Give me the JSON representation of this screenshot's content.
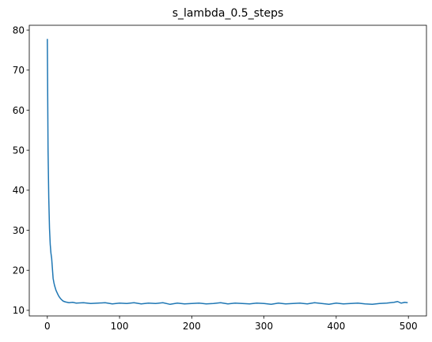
{
  "chart_data": {
    "type": "line",
    "title": "s_lambda_0.5_steps",
    "xlabel": "",
    "ylabel": "",
    "xlim": [
      -25,
      525
    ],
    "ylim": [
      8.6,
      81.2
    ],
    "xticks": [
      0,
      100,
      200,
      300,
      400,
      500
    ],
    "yticks": [
      10,
      20,
      30,
      40,
      50,
      60,
      70,
      80
    ],
    "grid": false,
    "legend": "none",
    "series": [
      {
        "color": "#1f77b4",
        "x": [
          0,
          1,
          2,
          3,
          4,
          5,
          6,
          7,
          8,
          9,
          10,
          12,
          14,
          16,
          18,
          20,
          22,
          25,
          30,
          35,
          40,
          50,
          60,
          70,
          80,
          90,
          100,
          110,
          120,
          130,
          140,
          150,
          160,
          170,
          180,
          190,
          200,
          210,
          220,
          230,
          240,
          250,
          260,
          270,
          280,
          290,
          300,
          310,
          320,
          330,
          340,
          350,
          360,
          370,
          380,
          390,
          400,
          410,
          420,
          430,
          440,
          450,
          460,
          470,
          480,
          485,
          490,
          495,
          499
        ],
        "y": [
          77.8,
          50.0,
          38.0,
          30.5,
          26.5,
          24.3,
          23.0,
          20.5,
          18.0,
          17.0,
          16.2,
          15.0,
          14.2,
          13.5,
          13.0,
          12.6,
          12.3,
          12.1,
          11.9,
          12.0,
          11.8,
          11.9,
          11.7,
          11.8,
          11.9,
          11.6,
          11.8,
          11.7,
          11.9,
          11.6,
          11.8,
          11.7,
          11.9,
          11.5,
          11.8,
          11.6,
          11.7,
          11.8,
          11.6,
          11.7,
          11.9,
          11.6,
          11.8,
          11.7,
          11.6,
          11.8,
          11.7,
          11.5,
          11.8,
          11.6,
          11.7,
          11.8,
          11.6,
          11.9,
          11.7,
          11.5,
          11.8,
          11.6,
          11.7,
          11.8,
          11.6,
          11.5,
          11.7,
          11.8,
          12.0,
          12.2,
          11.8,
          12.0,
          11.9
        ]
      }
    ]
  }
}
